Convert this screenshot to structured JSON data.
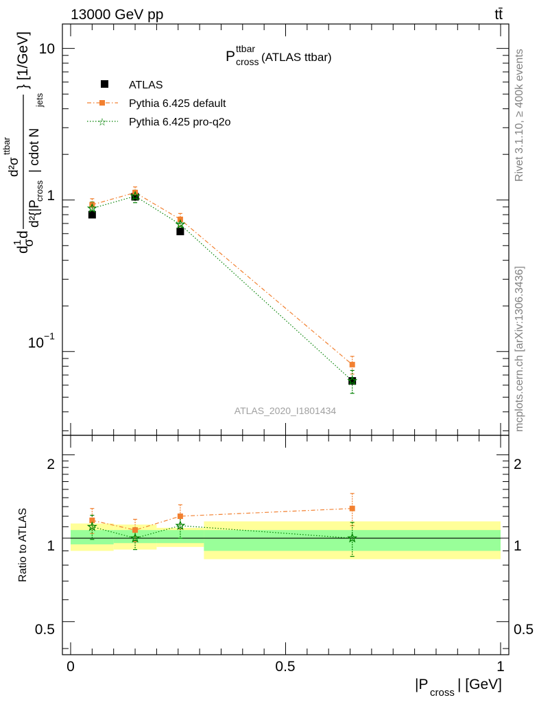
{
  "header": {
    "energy_label": "13000 GeV pp",
    "process_label": "tt̄"
  },
  "side_labels": {
    "rivet": "Rivet 3.1.10, ≥ 400k events",
    "mcplots": "mcplots.cern.ch [arXiv:1306.3436]"
  },
  "watermark": "ATLAS_2020_I1801434",
  "main_panel": {
    "title_main": "P",
    "title_sup": "ttbar",
    "title_sub": "cross",
    "title_rest": " (ATLAS ttbar)",
    "ylabel_parts": [
      "d",
      "1",
      "σ",
      "d",
      "d²σ",
      "ttbar",
      "d²{|P",
      "cross",
      "| cdot N",
      "jets",
      "} [1/GeV]"
    ],
    "y_ticks": [
      "10",
      "1",
      "10"
    ],
    "y_tick_exp": "−1",
    "legend": [
      {
        "label": "ATLAS",
        "color": "#000000",
        "marker": "square"
      },
      {
        "label": "Pythia 6.425 default",
        "color": "#f28030",
        "marker": "square-dashdot"
      },
      {
        "label": "Pythia 6.425 pro-q2o",
        "color": "#008000",
        "marker": "star-dotted"
      }
    ]
  },
  "ratio_panel": {
    "ylabel": "Ratio to ATLAS",
    "y_ticks": [
      "2",
      "1",
      "0.5"
    ],
    "x_ticks": [
      "0",
      "0.5",
      "1"
    ],
    "xlabel_pre": "|P",
    "xlabel_sub": "cross",
    "xlabel_post": "| [GeV]"
  },
  "chart_data": {
    "type": "scatter",
    "x_range": [
      0,
      1
    ],
    "main_y_scale": "log",
    "main_y_range": [
      0.028,
      14.5
    ],
    "ratio_y_scale": "log",
    "ratio_y_range": [
      0.38,
      2.35
    ],
    "bins": [
      [
        0,
        0.1
      ],
      [
        0.1,
        0.2
      ],
      [
        0.2,
        0.31
      ],
      [
        0.31,
        1.0
      ]
    ],
    "x": [
      0.05,
      0.15,
      0.255,
      0.655
    ],
    "series": [
      {
        "name": "ATLAS",
        "color": "#000000",
        "values": [
          0.8,
          1.05,
          0.62,
          0.064
        ],
        "err": [
          0.03,
          0.04,
          0.025,
          0.004
        ]
      },
      {
        "name": "Pythia 6.425 default",
        "color": "#f28030",
        "values": [
          0.93,
          1.12,
          0.745,
          0.082
        ],
        "err": [
          0.09,
          0.1,
          0.07,
          0.011
        ]
      },
      {
        "name": "Pythia 6.425 pro-q2o",
        "color": "#008000",
        "values": [
          0.88,
          1.06,
          0.69,
          0.064
        ],
        "err": [
          0.09,
          0.1,
          0.07,
          0.011
        ]
      }
    ],
    "ratio_series": [
      {
        "name": "Pythia 6.425 default",
        "color": "#f28030",
        "values": [
          1.16,
          1.07,
          1.2,
          1.28
        ],
        "err": [
          0.12,
          0.1,
          0.12,
          0.17
        ]
      },
      {
        "name": "Pythia 6.425 pro-q2o",
        "color": "#008000",
        "values": [
          1.1,
          1.0,
          1.11,
          1.0
        ],
        "err": [
          0.11,
          0.09,
          0.11,
          0.14
        ]
      }
    ],
    "bands": {
      "green_lo": [
        0.95,
        0.96,
        0.96,
        0.9
      ],
      "green_hi": [
        1.07,
        1.07,
        1.07,
        1.07
      ],
      "yellow_lo": [
        0.9,
        0.91,
        0.93,
        0.84
      ],
      "yellow_hi": [
        1.13,
        1.12,
        1.09,
        1.15
      ]
    }
  }
}
